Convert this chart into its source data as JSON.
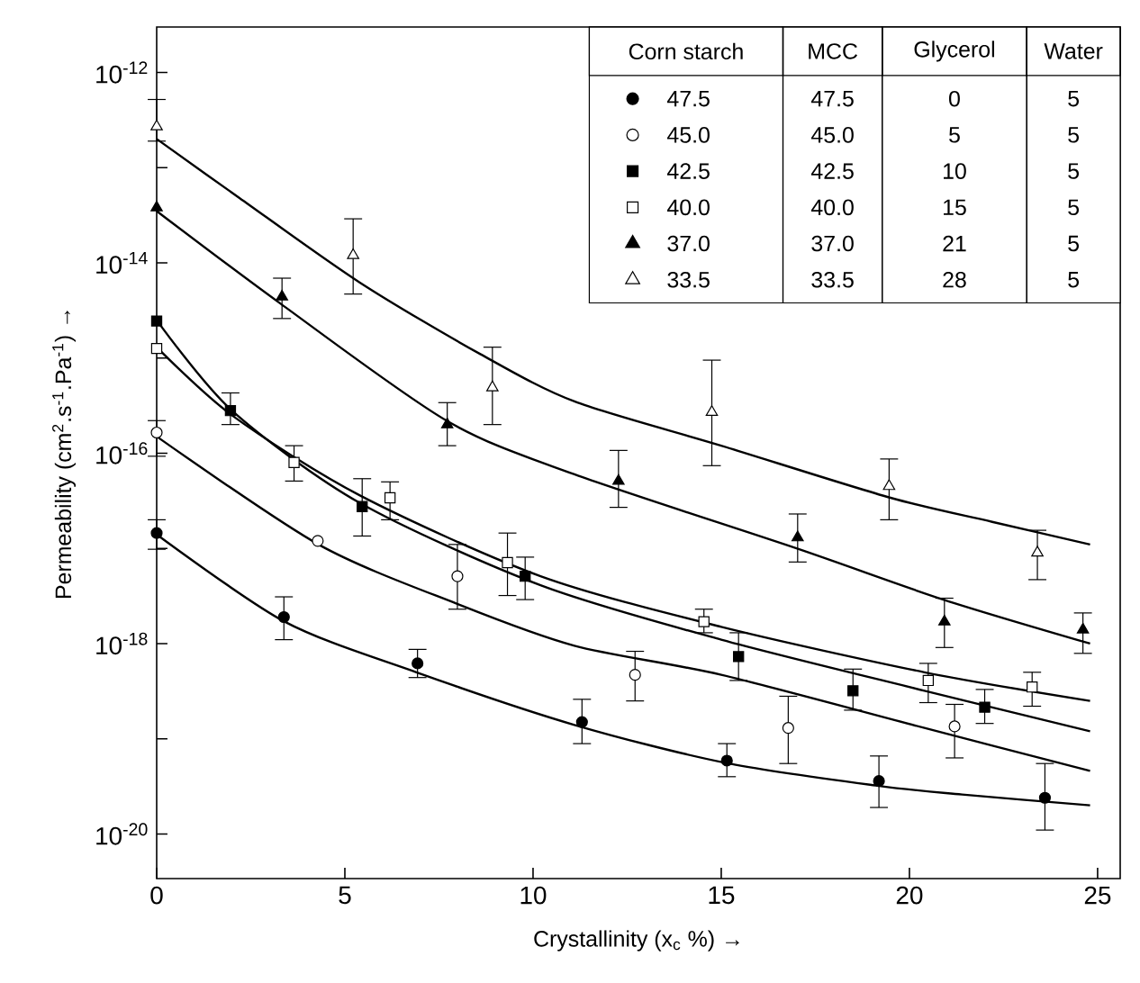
{
  "chart_data": {
    "type": "line",
    "xlabel": "Crystallinity (x$_{c}$ %) →",
    "ylabel": "Permeability (cm$^{2}$.s$^{-1}$.Pa$^{-1}$) →",
    "legend_title": "Corn starch",
    "legend": "top right",
    "log": true,
    "xlim": [
      0,
      25.6
    ],
    "xticks": [
      0,
      5,
      10,
      15,
      20,
      25
    ],
    "ylim": [
      3.4e-21,
      3e-12
    ],
    "yticks": [
      {
        "value": 1e-12,
        "label": "10$^{-12}$"
      },
      {
        "value": 1e-13,
        "label": null
      },
      {
        "value": 1e-14,
        "label": "10$^{-14}$"
      },
      {
        "value": 1e-15,
        "label": null
      },
      {
        "value": 1e-16,
        "label": "10$^{-16}$"
      },
      {
        "value": 1e-17,
        "label": null
      },
      {
        "value": 1e-18,
        "label": "10$^{-18}$"
      },
      {
        "value": 1e-19,
        "label": null
      },
      {
        "value": 1e-20,
        "label": "10$^{-20}$"
      }
    ],
    "annotations": [
      "MCC",
      "Glycerol",
      "Water",
      "47.5",
      "0",
      "5",
      "45.0",
      "5",
      "5",
      "42.5",
      "10",
      "5",
      "40.0",
      "15",
      "5",
      "37.0",
      "21",
      "5",
      "33.5",
      "28",
      "5"
    ],
    "series": [
      {
        "color": "#000000",
        "x": [
          0,
          3.4,
          6.9,
          11.1,
          15.1,
          19.2,
          21.4,
          24.8
        ],
        "values": [
          1.4e-17,
          1.7e-18,
          5e-19,
          1.4e-19,
          5.6e-20,
          3.2e-20,
          2.6e-20,
          2e-20
        ]
      },
      {
        "color": "#000000",
        "x": [
          0,
          4.3,
          8.0,
          11.1,
          15,
          20.4,
          24.8
        ],
        "values": [
          1.5e-16,
          1.1e-17,
          2.6e-18,
          9.5e-19,
          4.7e-19,
          1.3e-19,
          4.6e-20
        ]
      },
      {
        "color": "#000000",
        "x": [
          0,
          2,
          5.4,
          10.2,
          15,
          20.4,
          24.8
        ],
        "values": [
          2.5e-15,
          2.8e-16,
          3e-17,
          4.1e-18,
          1.1e-18,
          3.2e-19,
          1.2e-19
        ]
      },
      {
        "color": "#000000",
        "x": [
          0,
          2,
          5.4,
          10.2,
          15,
          20.4,
          24.8
        ],
        "values": [
          1.3e-15,
          2.5e-16,
          3.6e-17,
          5.1e-18,
          1.5e-18,
          5e-19,
          2.5e-19
        ]
      },
      {
        "color": "#000000",
        "x": [
          0,
          3.3,
          7.7,
          11.1,
          17.0,
          20.9,
          24.8
        ],
        "values": [
          3.5e-14,
          3.7e-15,
          2.2e-16,
          6e-17,
          1e-17,
          2.9e-18,
          1e-18
        ]
      },
      {
        "color": "#000000",
        "x": [
          0,
          2.2,
          5.4,
          8.6,
          11.1,
          15,
          19.5,
          22.2,
          24.8
        ],
        "values": [
          2e-13,
          4.8e-14,
          6.2e-15,
          1.1e-15,
          3.5e-16,
          1.2e-16,
          3.4e-17,
          1.9e-17,
          1.1e-17
        ]
      },
      {
        "type": "scatter",
        "name": "47.5",
        "color": "#000000",
        "marker": "circle",
        "x": [
          0,
          3.38,
          6.93,
          11.3,
          15.15,
          19.19,
          23.6
        ],
        "values": [
          1.45e-17,
          1.9e-18,
          6.2e-19,
          1.5e-19,
          5.9e-20,
          3.6e-20,
          2.4e-20
        ],
        "errors": [
          [
            9.8e-18,
            2e-17
          ],
          [
            1.1e-18,
            3.1e-18
          ],
          [
            4.4e-19,
            8.7e-19
          ],
          [
            8.9e-20,
            2.6e-19
          ],
          [
            4e-20,
            8.9e-20
          ],
          [
            1.9e-20,
            6.6e-20
          ],
          [
            1.1e-20,
            5.5e-20
          ]
        ]
      },
      {
        "type": "scatter",
        "name": "45.0",
        "color": "#ffffff",
        "marker": "circle",
        "x": [
          0,
          4.28,
          7.99,
          12.71,
          16.78,
          21.2
        ],
        "values": [
          1.65e-16,
          1.2e-17,
          5.1e-18,
          4.7e-19,
          1.3e-19,
          1.35e-19
        ],
        "errors": [
          [
            9.3e-17,
            2.2e-16
          ],
          null,
          [
            2.3e-18,
            1.1e-17
          ],
          [
            2.5e-19,
            8.3e-19
          ],
          [
            5.5e-20,
            2.8e-19
          ],
          [
            6.3e-20,
            2.3e-19
          ]
        ]
      },
      {
        "type": "scatter",
        "name": "42.5",
        "color": "#000000",
        "marker": "square",
        "x": [
          0,
          1.96,
          5.46,
          9.79,
          15.46,
          18.5,
          22.0
        ],
        "values": [
          2.45e-15,
          2.8e-16,
          2.75e-17,
          5.1e-18,
          7.3e-19,
          3.2e-19,
          2.15e-19
        ],
        "errors": [
          null,
          [
            2e-16,
            4.3e-16
          ],
          [
            1.35e-17,
            5.4e-17
          ],
          [
            2.9e-18,
            8.1e-18
          ],
          [
            4.1e-19,
            1.3e-18
          ],
          [
            2e-19,
            5.4e-19
          ],
          [
            1.45e-19,
            3.3e-19
          ]
        ]
      },
      {
        "type": "scatter",
        "name": "40.0",
        "color": "#ffffff",
        "marker": "square",
        "x": [
          0,
          3.65,
          6.2,
          9.32,
          14.54,
          20.5,
          23.26
        ],
        "values": [
          1.26e-15,
          8e-17,
          3.4e-17,
          7.1e-18,
          1.7e-18,
          4.1e-19,
          3.5e-19
        ],
        "errors": [
          null,
          [
            5.1e-17,
            1.2e-16
          ],
          [
            2e-17,
            5e-17
          ],
          [
            3.2e-18,
            1.45e-17
          ],
          [
            1.3e-18,
            2.3e-18
          ],
          [
            2.4e-19,
            6.2e-19
          ],
          [
            2.2e-19,
            5e-19
          ]
        ]
      },
      {
        "type": "scatter",
        "name": "37.0",
        "color": "#000000",
        "marker": "triangle",
        "x": [
          0,
          3.33,
          7.72,
          12.27,
          17.03,
          20.93,
          24.61
        ],
        "values": [
          3.8e-14,
          4.4e-15,
          2e-16,
          5.1e-17,
          1.3e-17,
          1.7e-18,
          1.4e-18
        ],
        "errors": [
          null,
          [
            2.6e-15,
            6.9e-15
          ],
          [
            1.2e-16,
            3.4e-16
          ],
          [
            2.7e-17,
            1.07e-16
          ],
          [
            7.2e-18,
            2.3e-17
          ],
          [
            9.1e-19,
            3e-18
          ],
          [
            7.9e-19,
            2.1e-18
          ]
        ]
      },
      {
        "type": "scatter",
        "name": "33.5",
        "color": "#ffffff",
        "marker": "triangle",
        "x": [
          0,
          5.22,
          8.92,
          14.75,
          19.46,
          23.4
        ],
        "values": [
          2.7e-13,
          1.2e-14,
          4.9e-16,
          2.7e-16,
          4.5e-17,
          9e-18
        ],
        "errors": [
          [
            1.9e-13,
            5.2e-13
          ],
          [
            4.7e-15,
            2.9e-14
          ],
          [
            2e-16,
            1.3e-15
          ],
          [
            7.4e-17,
            9.5e-16
          ],
          [
            2e-17,
            8.7e-17
          ],
          [
            4.7e-18,
            1.55e-17
          ]
        ]
      }
    ]
  }
}
